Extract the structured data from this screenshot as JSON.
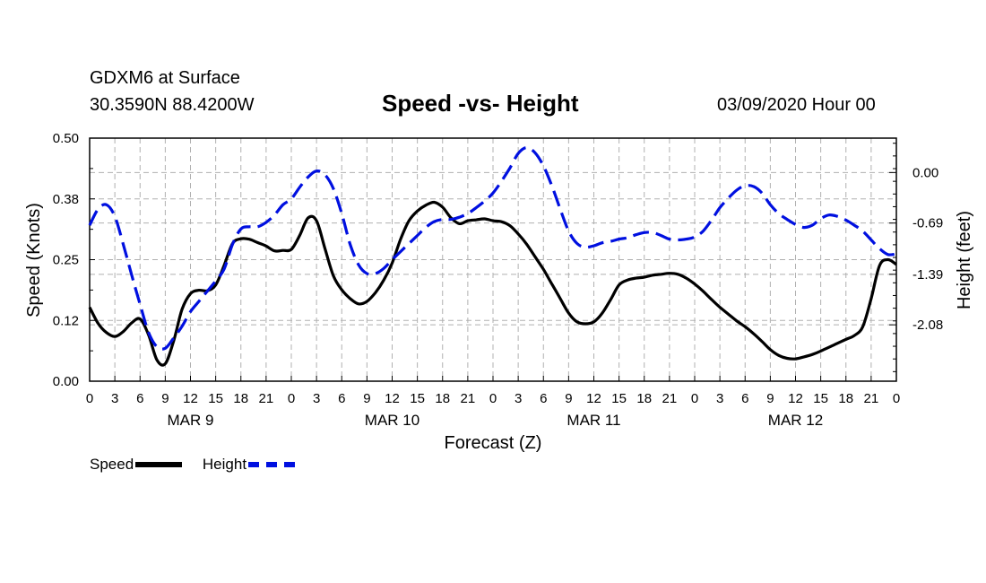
{
  "header": {
    "station": "GDXM6 at Surface",
    "location": "30.3590N 88.4200W",
    "title": "Speed -vs- Height",
    "datetime": "03/09/2020 Hour 00"
  },
  "legend": {
    "speed_label": "Speed",
    "height_label": "Height"
  },
  "colors": {
    "speed": "#000000",
    "height": "#0010e0",
    "grid": "#b0b0b0"
  },
  "chart_data": {
    "type": "line",
    "title": "Speed -vs- Height",
    "xlabel": "Forecast (Z)",
    "ylabel_left": "Speed (Knots)",
    "ylabel_right": "Height (feet)",
    "grid": true,
    "x_range_hours": [
      0,
      96
    ],
    "x_tick_labels": [
      "0",
      "3",
      "6",
      "9",
      "12",
      "15",
      "18",
      "21",
      "0",
      "3",
      "6",
      "9",
      "12",
      "15",
      "18",
      "21",
      "0",
      "3",
      "6",
      "9",
      "12",
      "15",
      "18",
      "21",
      "0",
      "3",
      "6",
      "9",
      "12",
      "15",
      "18",
      "21",
      "0"
    ],
    "day_labels": [
      {
        "label": "MAR 9",
        "hour": 12
      },
      {
        "label": "MAR 10",
        "hour": 36
      },
      {
        "label": "MAR 11",
        "hour": 60
      },
      {
        "label": "MAR 12",
        "hour": 84
      }
    ],
    "left_axis": {
      "range": [
        0.0,
        0.5
      ],
      "tick_labels": [
        "0.00",
        "0.12",
        "0.25",
        "0.38",
        "0.50"
      ]
    },
    "right_axis": {
      "range": [
        -2.85,
        0.47
      ],
      "ticks": [
        0.0,
        -0.69,
        -1.39,
        -2.08
      ],
      "tick_labels": [
        "0.00",
        "-0.69",
        "-1.39",
        "-2.08"
      ]
    },
    "series": [
      {
        "name": "Speed",
        "axis": "left",
        "style": "solid",
        "x": [
          0,
          1,
          2,
          3,
          4,
          5,
          6,
          7,
          8,
          9,
          10,
          11,
          12,
          13,
          14,
          15,
          16,
          17,
          18,
          19,
          20,
          21,
          22,
          23,
          24,
          25,
          26,
          27,
          28,
          29,
          30,
          31,
          32,
          33,
          34,
          35,
          36,
          37,
          38,
          39,
          40,
          41,
          42,
          43,
          44,
          45,
          46,
          47,
          48,
          49,
          50,
          51,
          52,
          53,
          54,
          55,
          56,
          57,
          58,
          59,
          60,
          61,
          62,
          63,
          64,
          65,
          66,
          67,
          68,
          69,
          70,
          71,
          72,
          73,
          74,
          75,
          76,
          77,
          78,
          79,
          80,
          81,
          82,
          83,
          84,
          85,
          86,
          87,
          88,
          89,
          90,
          91,
          92,
          93,
          94,
          95,
          96
        ],
        "values": [
          0.152,
          0.119,
          0.1,
          0.092,
          0.102,
          0.12,
          0.128,
          0.096,
          0.044,
          0.036,
          0.083,
          0.148,
          0.18,
          0.187,
          0.186,
          0.198,
          0.238,
          0.283,
          0.293,
          0.292,
          0.285,
          0.278,
          0.268,
          0.269,
          0.271,
          0.3,
          0.336,
          0.33,
          0.273,
          0.217,
          0.188,
          0.17,
          0.159,
          0.164,
          0.182,
          0.208,
          0.243,
          0.292,
          0.33,
          0.35,
          0.362,
          0.368,
          0.358,
          0.336,
          0.324,
          0.33,
          0.332,
          0.334,
          0.33,
          0.328,
          0.32,
          0.303,
          0.282,
          0.256,
          0.23,
          0.2,
          0.17,
          0.14,
          0.122,
          0.118,
          0.122,
          0.14,
          0.168,
          0.198,
          0.208,
          0.212,
          0.214,
          0.218,
          0.22,
          0.222,
          0.22,
          0.212,
          0.2,
          0.185,
          0.168,
          0.152,
          0.138,
          0.124,
          0.112,
          0.098,
          0.082,
          0.065,
          0.053,
          0.047,
          0.046,
          0.05,
          0.055,
          0.062,
          0.07,
          0.078,
          0.086,
          0.094,
          0.112,
          0.17,
          0.238,
          0.25,
          0.24
        ]
      },
      {
        "name": "Height",
        "axis": "right",
        "style": "dashed",
        "x": [
          0,
          1,
          2,
          3,
          4,
          5,
          6,
          7,
          8,
          9,
          10,
          11,
          12,
          13,
          14,
          15,
          16,
          17,
          18,
          19,
          20,
          21,
          22,
          23,
          24,
          25,
          26,
          27,
          28,
          29,
          30,
          31,
          32,
          33,
          34,
          35,
          36,
          37,
          38,
          39,
          40,
          41,
          42,
          43,
          44,
          45,
          46,
          47,
          48,
          49,
          50,
          51,
          52,
          53,
          54,
          55,
          56,
          57,
          58,
          59,
          60,
          61,
          62,
          63,
          64,
          65,
          66,
          67,
          68,
          69,
          70,
          71,
          72,
          73,
          74,
          75,
          76,
          77,
          78,
          79,
          80,
          81,
          82,
          83,
          84,
          85,
          86,
          87,
          88,
          89,
          90,
          91,
          92,
          93,
          94,
          95,
          96
        ],
        "values": [
          -0.72,
          -0.5,
          -0.44,
          -0.6,
          -0.98,
          -1.4,
          -1.8,
          -2.18,
          -2.38,
          -2.4,
          -2.26,
          -2.1,
          -1.9,
          -1.76,
          -1.62,
          -1.48,
          -1.32,
          -0.98,
          -0.77,
          -0.74,
          -0.74,
          -0.68,
          -0.58,
          -0.44,
          -0.36,
          -0.2,
          -0.06,
          0.02,
          -0.03,
          -0.22,
          -0.56,
          -0.98,
          -1.26,
          -1.38,
          -1.38,
          -1.31,
          -1.19,
          -1.08,
          -0.97,
          -0.86,
          -0.75,
          -0.67,
          -0.64,
          -0.64,
          -0.61,
          -0.56,
          -0.48,
          -0.39,
          -0.28,
          -0.12,
          0.06,
          0.26,
          0.34,
          0.27,
          0.09,
          -0.18,
          -0.5,
          -0.8,
          -0.97,
          -1.02,
          -1.0,
          -0.96,
          -0.94,
          -0.91,
          -0.89,
          -0.85,
          -0.82,
          -0.82,
          -0.86,
          -0.91,
          -0.92,
          -0.91,
          -0.88,
          -0.8,
          -0.65,
          -0.48,
          -0.35,
          -0.24,
          -0.18,
          -0.19,
          -0.28,
          -0.44,
          -0.56,
          -0.64,
          -0.71,
          -0.75,
          -0.72,
          -0.63,
          -0.58,
          -0.6,
          -0.65,
          -0.72,
          -0.8,
          -0.92,
          -1.04,
          -1.12,
          -1.11
        ]
      }
    ]
  }
}
